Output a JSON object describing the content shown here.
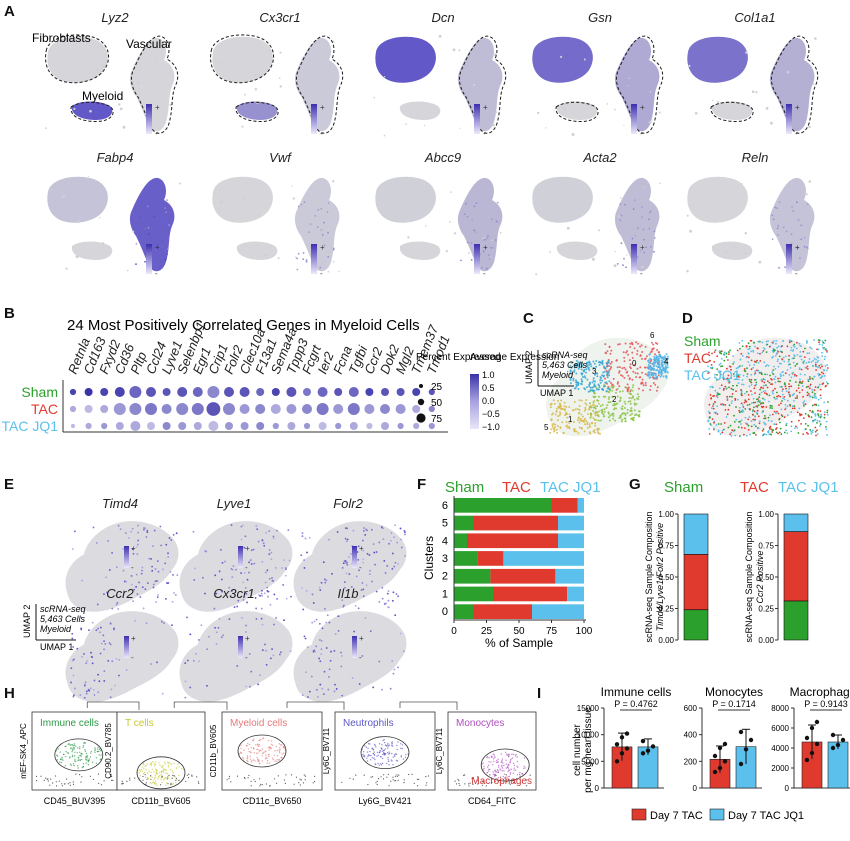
{
  "panels": {
    "A": "A",
    "B": "B",
    "C": "C",
    "D": "D",
    "E": "E",
    "F": "F",
    "G": "G",
    "H": "H",
    "I": "I"
  },
  "colors": {
    "sham": "#2ca02c",
    "tac": "#e03a2f",
    "jq1": "#5bc0eb",
    "expr": "#5b4fc4",
    "cluster": [
      "#e8525a",
      "#6cc0a8",
      "#8bc34a",
      "#35a6d6",
      "#4fb3e8",
      "#d08ad8",
      "#d9b94a"
    ]
  },
  "a": {
    "genes": [
      "Lyz2",
      "Cx3cr1",
      "Dcn",
      "Gsn",
      "Col1a1",
      "Fabp4",
      "Vwf",
      "Abcc9",
      "Acta2",
      "Reln"
    ],
    "labels": {
      "fibroblasts": "Fibroblasts",
      "vascular": "Vascular",
      "myeloid": "Myeloid"
    },
    "plus": "+",
    "minus": "-"
  },
  "b": {
    "title": "24 Most Positively Correlated Genes in Myeloid Cells",
    "genes": [
      "Retnla",
      "Cd163",
      "Fxyd2",
      "Cd36",
      "Pltp",
      "Ccl24",
      "Lyve1",
      "Selenbp1",
      "Egr1",
      "Crip1",
      "Folr2",
      "Clec10a",
      "F13a1",
      "Sema4a",
      "Tppp3",
      "Fcgrt",
      "Ier2",
      "Fcna",
      "Tgfbi",
      "Ccr2",
      "Dok2",
      "Mgl2",
      "Tmem37",
      "Tmod1"
    ],
    "rows": [
      "Sham",
      "TAC",
      "TAC JQ1"
    ],
    "sizes": [
      [
        2,
        3,
        3,
        4,
        5,
        4,
        3,
        4,
        4,
        5,
        4,
        4,
        3,
        3,
        4,
        3,
        4,
        3,
        4,
        3,
        3,
        3,
        3,
        2
      ],
      [
        2,
        3,
        3,
        5,
        5,
        5,
        4,
        5,
        5,
        6,
        5,
        4,
        4,
        4,
        4,
        4,
        5,
        4,
        5,
        4,
        4,
        4,
        3,
        2
      ],
      [
        1,
        2,
        2,
        3,
        4,
        3,
        3,
        3,
        3,
        4,
        3,
        3,
        3,
        2,
        3,
        2,
        3,
        2,
        3,
        2,
        3,
        2,
        2,
        2
      ]
    ],
    "shades": [
      [
        0.9,
        1,
        0.9,
        0.9,
        0.7,
        0.8,
        0.8,
        0.8,
        0.7,
        0.5,
        0.8,
        0.8,
        0.7,
        0.9,
        0.8,
        0.6,
        0.7,
        0.8,
        0.7,
        0.9,
        0.8,
        0.8,
        0.9,
        0.8
      ],
      [
        0.3,
        0.2,
        0.3,
        0.4,
        0.5,
        0.6,
        0.5,
        0.5,
        0.6,
        0.8,
        0.5,
        0.4,
        0.5,
        0.3,
        0.4,
        0.5,
        0.6,
        0.4,
        0.6,
        0.4,
        0.5,
        0.4,
        0.3,
        0.5
      ],
      [
        0.2,
        0.3,
        0.4,
        0.3,
        0.3,
        0.2,
        0.5,
        0.4,
        0.3,
        0.2,
        0.4,
        0.4,
        0.5,
        0.4,
        0.3,
        0.4,
        0.2,
        0.4,
        0.3,
        0.2,
        0.3,
        0.4,
        0.3,
        0.4
      ]
    ],
    "pct_title": "Percent Expressed",
    "pct_vals": [
      "25",
      "50",
      "75"
    ],
    "avg_title": "Average Expression",
    "avg_ticks": [
      "1.0",
      "0.5",
      "0.0",
      "−0.5",
      "−1.0"
    ]
  },
  "c": {
    "label1": "scRNA-seq",
    "label2": "5,463 Cells",
    "label3": "Myeloid",
    "axis1": "UMAP 1",
    "axis2": "UMAP 2",
    "clusters": [
      "0",
      "1",
      "2",
      "3",
      "4",
      "5",
      "6"
    ]
  },
  "d": {
    "legend": [
      "Sham",
      "TAC",
      "TAC JQ1"
    ]
  },
  "e": {
    "genes": [
      "Timd4",
      "Lyve1",
      "Folr2",
      "Ccr2",
      "Cx3cr1",
      "Il1b"
    ],
    "label1": "scRNA-seq",
    "label2": "5,463 Cells",
    "label3": "Myeloid",
    "axis1": "UMAP 1",
    "axis2": "UMAP 2"
  },
  "chart_data": [
    {
      "type": "bar",
      "panel": "F",
      "orientation": "horizontal-stacked",
      "categories": [
        "0",
        "1",
        "2",
        "3",
        "4",
        "5",
        "6"
      ],
      "series": [
        {
          "name": "Sham",
          "values": [
            15,
            30,
            28,
            18,
            10,
            15,
            75
          ]
        },
        {
          "name": "TAC",
          "values": [
            45,
            57,
            50,
            20,
            70,
            65,
            20
          ]
        },
        {
          "name": "TAC JQ1",
          "values": [
            40,
            13,
            22,
            62,
            20,
            20,
            5
          ]
        }
      ],
      "xlabel": "% of Sample",
      "ylabel": "Clusters",
      "xlim": [
        0,
        100
      ],
      "xticks": [
        "0",
        "25",
        "50",
        "75",
        "100"
      ]
    },
    {
      "type": "bar",
      "panel": "G",
      "orientation": "vertical-stacked",
      "categories": [
        "Timd4/Lyve1/Folr2 Positive",
        "Ccr2 Positive"
      ],
      "series": [
        {
          "name": "Sham",
          "values": [
            0.24,
            0.31
          ]
        },
        {
          "name": "TAC",
          "values": [
            0.44,
            0.55
          ]
        },
        {
          "name": "TAC JQ1",
          "values": [
            0.32,
            0.14
          ]
        }
      ],
      "ylabel_line1": "scRNA-seq Sample Composition",
      "ylim": [
        0,
        1
      ],
      "yticks": [
        "0.00",
        "0.25",
        "0.50",
        "0.75",
        "1.00"
      ]
    },
    {
      "type": "bar",
      "panel": "I",
      "groups": [
        {
          "title": "Immune cells",
          "p": "P = 0.4762",
          "ylim": [
            0,
            15000
          ],
          "yticks": [
            "0",
            "5000",
            "10000",
            "15000"
          ],
          "values": [
            7700,
            7700
          ],
          "sd": [
            2600,
            1500
          ],
          "pts": [
            [
              5000,
              6500,
              7400,
              8200,
              9500,
              10200
            ],
            [
              6500,
              7000,
              7800,
              8800
            ]
          ]
        },
        {
          "title": "Monocytes",
          "p": "P = 0.1714",
          "ylim": [
            0,
            600
          ],
          "yticks": [
            "0",
            "200",
            "400",
            "600"
          ],
          "values": [
            215,
            310
          ],
          "sd": [
            100,
            130
          ],
          "pts": [
            [
              120,
              150,
              200,
              240,
              300,
              330
            ],
            [
              180,
              290,
              360,
              420
            ]
          ]
        },
        {
          "title": "Macrophages",
          "p": "P = 0.9143",
          "ylim": [
            0,
            8000
          ],
          "yticks": [
            "0",
            "2000",
            "4000",
            "6000",
            "8000"
          ],
          "values": [
            4600,
            4600
          ],
          "sd": [
            1700,
            700
          ],
          "pts": [
            [
              2800,
              3500,
              4400,
              5000,
              6000,
              6600
            ],
            [
              4000,
              4300,
              4800,
              5300
            ]
          ]
        }
      ],
      "ylabel1": "cell number",
      "ylabel2": "per mg heart tissue",
      "legend": [
        "Day 7 TAC",
        "Day 7 TAC JQ1"
      ]
    }
  ],
  "h": {
    "gates": [
      {
        "x": "CD45_BUV395",
        "y": "mEF-SK4_APC",
        "label": "Immune cells",
        "color": "#2e9a4a"
      },
      {
        "x": "CD11b_BV605",
        "y": "CD90.2_BV785",
        "label": "T cells",
        "color": "#c8c82a"
      },
      {
        "x": "CD11c_BV650",
        "y": "CD11b_BV605",
        "label": "Myeloid cells",
        "color": "#e87a7a"
      },
      {
        "x": "Ly6G_BV421",
        "y": "Ly6C_BV711",
        "label": "Neutrophils",
        "color": "#5a58c8"
      },
      {
        "x": "CD64_FITC",
        "y": "Ly6C_BV711",
        "label": "Monocytes",
        "label2": "Macrophages",
        "color": "#b050c0"
      }
    ]
  }
}
